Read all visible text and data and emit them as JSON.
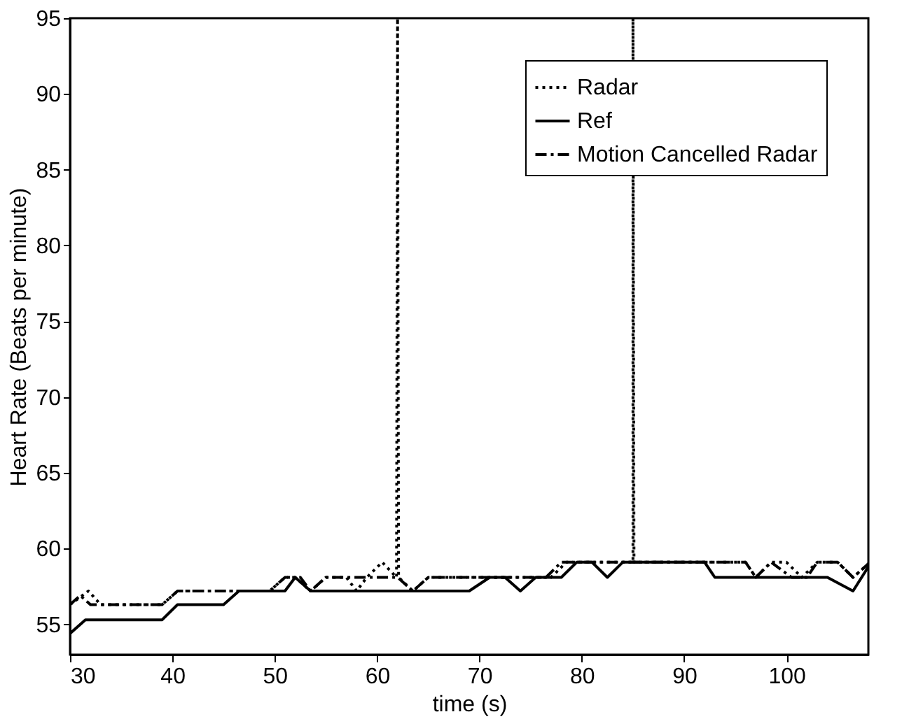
{
  "chart_data": {
    "type": "line",
    "xlabel": "time (s)",
    "ylabel": "Heart Rate (Beats per minute)",
    "xlim": [
      30,
      108
    ],
    "xticks": [
      30,
      40,
      50,
      60,
      70,
      80,
      90,
      100
    ],
    "ylim": [
      53,
      95
    ],
    "yticks": [
      55,
      60,
      65,
      70,
      75,
      80,
      85,
      90,
      95
    ],
    "grid": false,
    "legend": "top right",
    "marker": "none",
    "series": [
      {
        "name": "Radar",
        "color": "#000000",
        "line_style": "dotted",
        "x": [
          30,
          31.8,
          33,
          39,
          40.5,
          49.5,
          51,
          52,
          53.5,
          55,
          57,
          58,
          59,
          60.5,
          61.9,
          62,
          62.1,
          63.5,
          65,
          77,
          78.5,
          85,
          85,
          85.1,
          96,
          97,
          98.5,
          100,
          101.5,
          103,
          105,
          106.5,
          108
        ],
        "values": [
          56.3,
          57.2,
          56.3,
          56.3,
          57.2,
          57.2,
          58.1,
          58.1,
          57.2,
          58.1,
          58.1,
          57.2,
          58.1,
          59.1,
          58.1,
          95,
          58.1,
          57.2,
          58.1,
          58.1,
          59.1,
          59.1,
          95,
          59.1,
          59.1,
          58.1,
          59.1,
          59.1,
          58.1,
          59.1,
          59.1,
          58.1,
          59
        ]
      },
      {
        "name": "Ref",
        "color": "#000000",
        "line_style": "solid",
        "x": [
          30,
          31.5,
          39,
          40.5,
          45,
          46.5,
          51,
          52,
          53.5,
          69,
          71,
          72.5,
          74,
          75.5,
          78,
          79.5,
          81,
          82.5,
          84,
          92,
          93,
          104,
          106.5,
          108
        ],
        "values": [
          54.4,
          55.3,
          55.3,
          56.3,
          56.3,
          57.2,
          57.2,
          58.1,
          57.2,
          57.2,
          58.1,
          58.1,
          57.2,
          58.1,
          58.1,
          59.1,
          59.1,
          58.1,
          59.1,
          59.1,
          58.1,
          58.1,
          57.2,
          58.8
        ]
      },
      {
        "name": "Motion Cancelled Radar",
        "color": "#000000",
        "line_style": "dashdot",
        "x": [
          30,
          31,
          32,
          39,
          40.5,
          49.5,
          51,
          52.5,
          53.5,
          55,
          62,
          63.5,
          65,
          71,
          72.5,
          76.5,
          78,
          96,
          97,
          98.5,
          100.5,
          102,
          103,
          105,
          106.5,
          108
        ],
        "values": [
          56.3,
          56.9,
          56.3,
          56.3,
          57.2,
          57.2,
          58.1,
          58.1,
          57.2,
          58.1,
          58.1,
          57.2,
          58.1,
          58.1,
          58.1,
          58.1,
          59.1,
          59.1,
          58.1,
          59.1,
          58.1,
          58.1,
          59.1,
          59.1,
          58.1,
          59
        ]
      }
    ]
  }
}
